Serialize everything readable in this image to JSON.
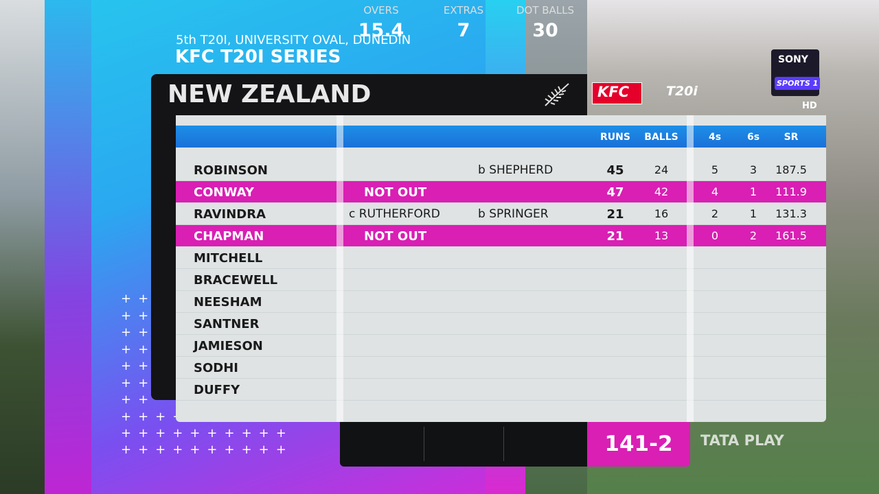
{
  "header": {
    "subtitle": "5th T20I, UNIVERSITY OVAL, DUNEDIN",
    "title": "KFC T20I SERIES",
    "team": "NEW ZEALAND"
  },
  "logos": {
    "sponsor": "KFC",
    "series": "T20i",
    "channel": "SONY",
    "channel_sub": "SPORTS 1",
    "hd": "HD",
    "provider": "TATA PLAY"
  },
  "table": {
    "columns": [
      "RUNS",
      "BALLS",
      "4s",
      "6s",
      "SR"
    ],
    "rows": [
      {
        "name": "ROBINSON",
        "bowler": "b SHEPHERD",
        "runs": 45,
        "balls": 24,
        "fours": 5,
        "sixes": 3,
        "sr": 187.5
      },
      {
        "name": "CONWAY",
        "dismissal": "NOT OUT",
        "runs": 47,
        "balls": 42,
        "fours": 4,
        "sixes": 1,
        "sr": 111.9,
        "highlight": true
      },
      {
        "name": "RAVINDRA",
        "dismissal": "c RUTHERFORD",
        "bowler": "b SPRINGER",
        "runs": 21,
        "balls": 16,
        "fours": 2,
        "sixes": 1,
        "sr": 131.3
      },
      {
        "name": "CHAPMAN",
        "dismissal": "NOT OUT",
        "runs": 21,
        "balls": 13,
        "fours": 0,
        "sixes": 2,
        "sr": 161.5,
        "highlight": true
      },
      {
        "name": "MITCHELL"
      },
      {
        "name": "BRACEWELL"
      },
      {
        "name": "NEESHAM"
      },
      {
        "name": "SANTNER"
      },
      {
        "name": "JAMIESON"
      },
      {
        "name": "SODHI"
      },
      {
        "name": "DUFFY"
      }
    ]
  },
  "summary": {
    "overs_label": "OVERS",
    "overs": "15.4",
    "extras_label": "EXTRAS",
    "extras": 7,
    "dots_label": "DOT BALLS",
    "dots": 30,
    "score": "141-2"
  }
}
